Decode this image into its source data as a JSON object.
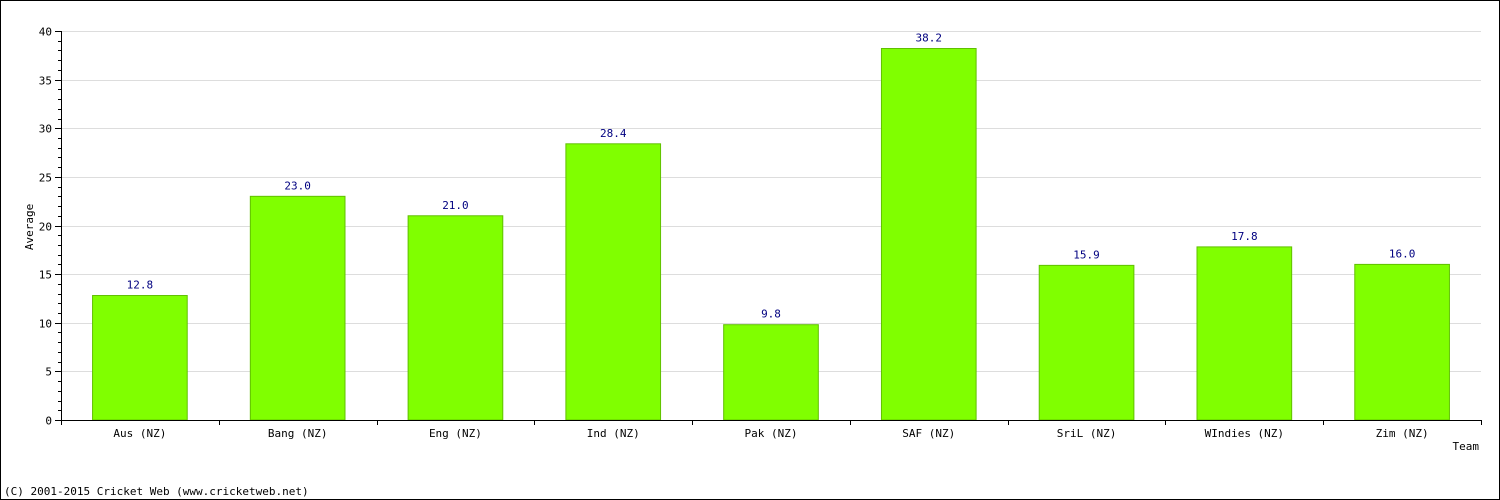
{
  "chart_data": {
    "type": "bar",
    "categories": [
      "Aus (NZ)",
      "Bang (NZ)",
      "Eng (NZ)",
      "Ind (NZ)",
      "Pak (NZ)",
      "SAF (NZ)",
      "SriL (NZ)",
      "WIndies (NZ)",
      "Zim (NZ)"
    ],
    "values": [
      12.8,
      23.0,
      21.0,
      28.4,
      9.8,
      38.2,
      15.9,
      17.8,
      16.0
    ],
    "value_labels": [
      "12.8",
      "23.0",
      "21.0",
      "28.4",
      "9.8",
      "38.2",
      "15.9",
      "17.8",
      "16.0"
    ],
    "xlabel": "Team",
    "ylabel": "Average",
    "ylim": [
      0,
      40
    ],
    "yticks": [
      0,
      5,
      10,
      15,
      20,
      25,
      30,
      35,
      40
    ],
    "grid": true,
    "bar_color": "#80ff00",
    "value_label_color": "#000080"
  },
  "footer": "(C) 2001-2015 Cricket Web (www.cricketweb.net)"
}
